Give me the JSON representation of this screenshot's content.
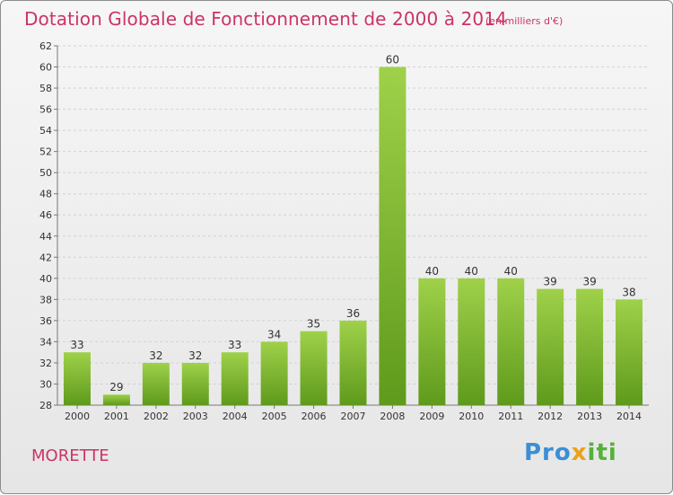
{
  "title": "Dotation Globale de Fonctionnement de 2000 à 2014",
  "unit": "(en milliers d'€)",
  "commune": "MORETTE",
  "logo": {
    "part1": "Pro",
    "part2": "x",
    "part3": "iti"
  },
  "colors": {
    "bar_top": "#9fd14a",
    "bar_bottom": "#5f9a1c",
    "accent": "#cc3366"
  },
  "chart_data": {
    "type": "bar",
    "categories": [
      "2000",
      "2001",
      "2002",
      "2003",
      "2004",
      "2005",
      "2006",
      "2007",
      "2008",
      "2009",
      "2010",
      "2011",
      "2012",
      "2013",
      "2014"
    ],
    "values": [
      33,
      29,
      32,
      32,
      33,
      34,
      35,
      36,
      60,
      40,
      40,
      40,
      39,
      39,
      38
    ],
    "title": "Dotation Globale de Fonctionnement de 2000 à 2014",
    "xlabel": "",
    "ylabel": "",
    "ylim": [
      28,
      62
    ],
    "yticks": [
      28,
      30,
      32,
      34,
      36,
      38,
      40,
      42,
      44,
      46,
      48,
      50,
      52,
      54,
      56,
      58,
      60,
      62
    ],
    "grid": true
  }
}
